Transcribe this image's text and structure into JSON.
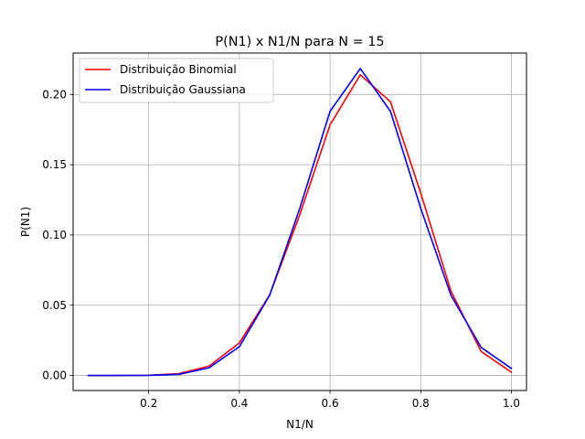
{
  "chart_data": {
    "type": "line",
    "title": "P(N1) x N1/N para N = 15",
    "xlabel": "N1/N",
    "ylabel": "P(N1)",
    "xlim": [
      0.0333,
      1.0333
    ],
    "ylim": [
      -0.0107,
      0.2295
    ],
    "xticks": [
      0.2,
      0.4,
      0.6,
      0.8,
      1.0
    ],
    "xtick_labels": [
      "0.2",
      "0.4",
      "0.6",
      "0.8",
      "1.0"
    ],
    "yticks": [
      0.0,
      0.05,
      0.1,
      0.15,
      0.2
    ],
    "ytick_labels": [
      "0.00",
      "0.05",
      "0.10",
      "0.15",
      "0.20"
    ],
    "grid": true,
    "legend_position": "top-left",
    "x": [
      0.0667,
      0.1333,
      0.2,
      0.2667,
      0.3333,
      0.4,
      0.4667,
      0.5333,
      0.6,
      0.6667,
      0.7333,
      0.8,
      0.8667,
      0.9333,
      1.0
    ],
    "series": [
      {
        "name": "Distribuição Binomial",
        "color": "#ff0000",
        "values": [
          0.0,
          0.0,
          0.0002,
          0.0013,
          0.0067,
          0.0232,
          0.0573,
          0.1145,
          0.1784,
          0.214,
          0.1948,
          0.1298,
          0.06,
          0.0171,
          0.0023
        ]
      },
      {
        "name": "Distribuição Gaussiana",
        "color": "#0000ff",
        "values": [
          0.0,
          0.0,
          0.0001,
          0.0008,
          0.0055,
          0.0205,
          0.057,
          0.119,
          0.188,
          0.2185,
          0.188,
          0.119,
          0.057,
          0.02,
          0.005
        ]
      }
    ]
  }
}
